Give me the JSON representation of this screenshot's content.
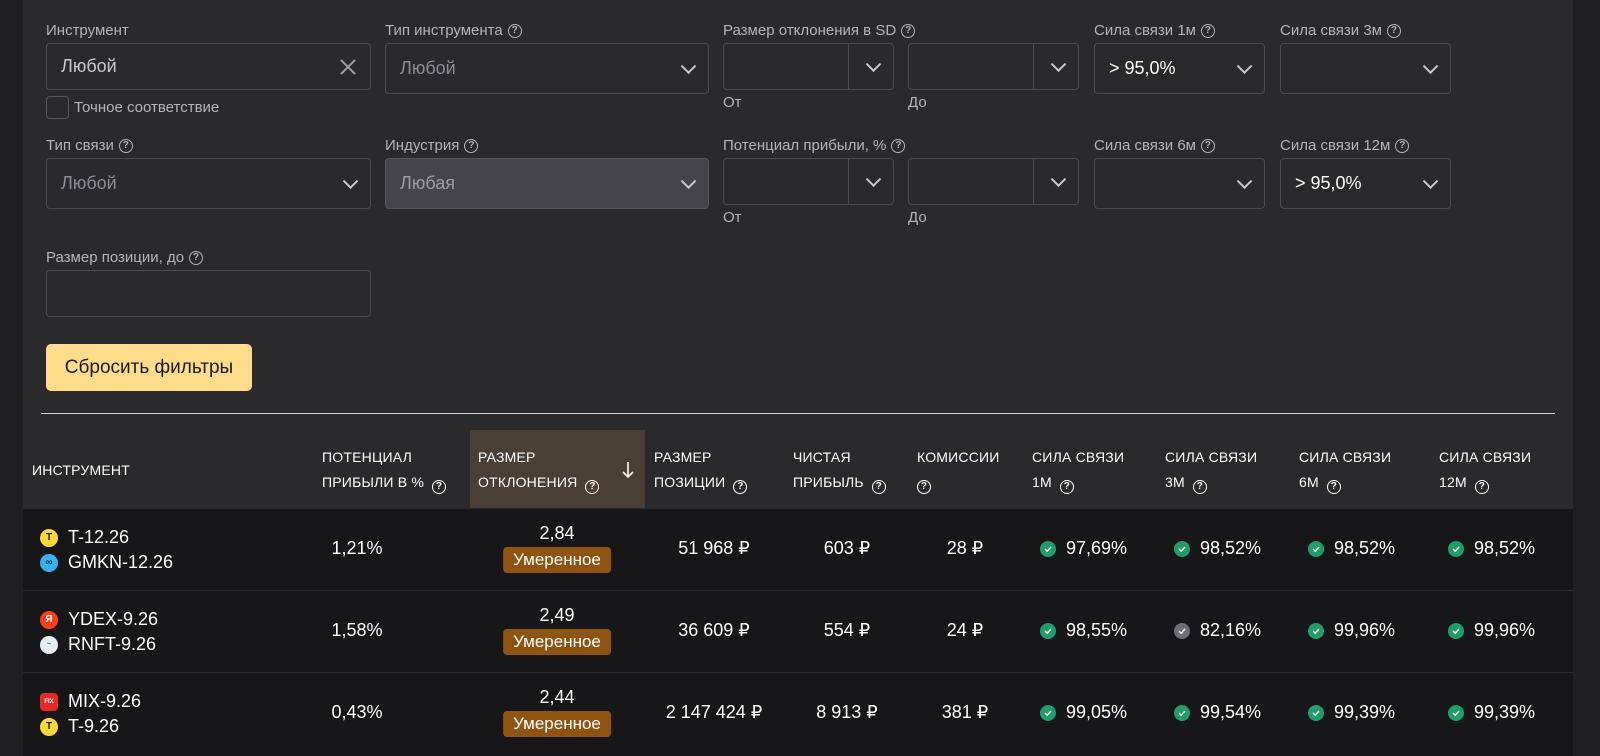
{
  "filters": {
    "instrument": {
      "label": "Инструмент",
      "value": "Любой"
    },
    "exact_match": {
      "label": "Точное соответствие"
    },
    "instrument_type": {
      "label": "Тип инструмента",
      "value": "Любой"
    },
    "deviation_sd": {
      "label": "Размер отклонения в SD",
      "from_label": "От",
      "to_label": "До"
    },
    "strength_1m": {
      "label": "Сила связи 1м",
      "value": "> 95,0%"
    },
    "strength_3m": {
      "label": "Сила связи 3м",
      "value": ""
    },
    "link_type": {
      "label": "Тип связи",
      "value": "Любой"
    },
    "industry": {
      "label": "Индустрия",
      "value": "Любая"
    },
    "profit_potential": {
      "label": "Потенциал прибыли, %",
      "from_label": "От",
      "to_label": "До"
    },
    "strength_6m": {
      "label": "Сила связи 6м",
      "value": ""
    },
    "strength_12m": {
      "label": "Сила связи 12м",
      "value": "> 95,0%"
    },
    "position_size": {
      "label": "Размер позиции, до",
      "value": ""
    },
    "reset_label": "Сбросить фильтры"
  },
  "table": {
    "headers": {
      "instrument": "ИНСТРУМЕНТ",
      "potential_1": "ПОТЕНЦИАЛ",
      "potential_2": "ПРИБЫЛИ В %",
      "deviation_1": "РАЗМЕР",
      "deviation_2": "ОТКЛОНЕНИЯ",
      "position_1": "РАЗМЕР",
      "position_2": "ПОЗИЦИИ",
      "net_1": "ЧИСТАЯ",
      "net_2": "ПРИБЫЛЬ",
      "fees_1": "КОМИССИИ",
      "s1m_1": "СИЛА СВЯЗИ",
      "s1m_2": "1М",
      "s3m_1": "СИЛА СВЯЗИ",
      "s3m_2": "3М",
      "s6m_1": "СИЛА СВЯЗИ",
      "s6m_2": "6М",
      "s12m_1": "СИЛА СВЯЗИ",
      "s12m_2": "12М"
    },
    "rows": [
      {
        "inst1": "T-12.26",
        "inst2": "GMKN-12.26",
        "potential": "1,21%",
        "deviation": "2,84",
        "badge": "Умеренное",
        "position": "51 968 ₽",
        "net": "603 ₽",
        "fees": "28 ₽",
        "s1m": "97,69%",
        "s3m": "98,52%",
        "s6m": "98,52%",
        "s12m": "98,52%"
      },
      {
        "inst1": "YDEX-9.26",
        "inst2": "RNFT-9.26",
        "potential": "1,58%",
        "deviation": "2,49",
        "badge": "Умеренное",
        "position": "36 609 ₽",
        "net": "554 ₽",
        "fees": "24 ₽",
        "s1m": "98,55%",
        "s3m": "82,16%",
        "s6m": "99,96%",
        "s12m": "99,96%"
      },
      {
        "inst1": "MIX-9.26",
        "inst2": "T-9.26",
        "potential": "0,43%",
        "deviation": "2,44",
        "badge": "Умеренное",
        "position": "2 147 424 ₽",
        "net": "8 913 ₽",
        "fees": "381 ₽",
        "s1m": "99,05%",
        "s3m": "99,54%",
        "s6m": "99,39%",
        "s12m": "99,39%"
      }
    ]
  },
  "colors": {
    "accent": "#ffdc8a",
    "badge": "#8f5412",
    "check_green": "#1f9e6a",
    "check_gray": "#6e6e78"
  }
}
